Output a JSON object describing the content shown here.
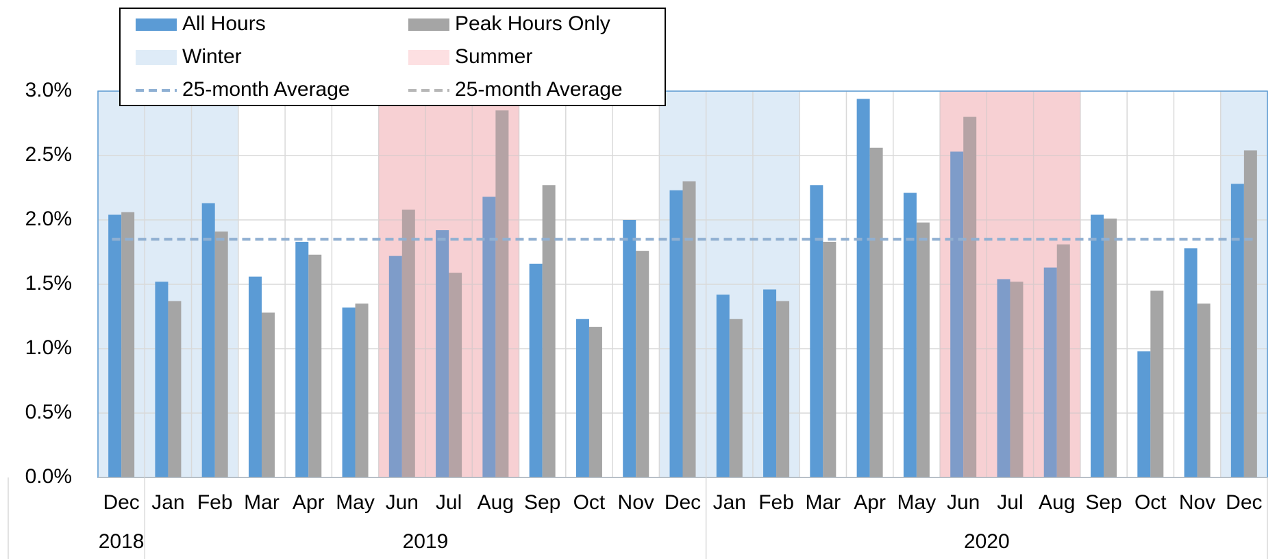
{
  "chart_data": {
    "type": "bar",
    "categories": [
      "Dec",
      "Jan",
      "Feb",
      "Mar",
      "Apr",
      "May",
      "Jun",
      "Jul",
      "Aug",
      "Sep",
      "Oct",
      "Nov",
      "Dec",
      "Jan",
      "Feb",
      "Mar",
      "Apr",
      "May",
      "Jun",
      "Jul",
      "Aug",
      "Sep",
      "Oct",
      "Nov",
      "Dec"
    ],
    "years": [
      {
        "label": "2018",
        "span": 1
      },
      {
        "label": "2019",
        "span": 12
      },
      {
        "label": "2020",
        "span": 12
      }
    ],
    "series": [
      {
        "name": "All Hours",
        "color": "#5b9bd5",
        "values": [
          2.04,
          1.52,
          2.13,
          1.56,
          1.83,
          1.32,
          1.72,
          1.92,
          2.18,
          1.66,
          1.23,
          2.0,
          2.23,
          1.42,
          1.46,
          2.27,
          2.94,
          2.21,
          2.53,
          1.54,
          1.63,
          2.04,
          0.98,
          1.78,
          2.28
        ]
      },
      {
        "name": "Peak Hours Only",
        "color": "#a5a5a5",
        "values": [
          2.06,
          1.37,
          1.91,
          1.28,
          1.73,
          1.35,
          2.08,
          1.59,
          2.85,
          2.27,
          1.17,
          1.76,
          2.3,
          1.23,
          1.37,
          1.83,
          2.56,
          1.98,
          2.8,
          1.52,
          1.81,
          2.01,
          1.45,
          1.35,
          2.54
        ]
      }
    ],
    "seasons": [
      {
        "name": "Winter",
        "color": "#deebf7",
        "categories": [
          0,
          1,
          2,
          12,
          13,
          14,
          24
        ]
      },
      {
        "name": "Summer",
        "color": "#fde0e2",
        "categories": [
          6,
          7,
          8,
          18,
          19,
          20
        ]
      }
    ],
    "averages": [
      {
        "name": "25-month Average",
        "color": "#8fb0d3",
        "value": 1.85
      },
      {
        "name": "25-month Average",
        "color": "#b7b7b7",
        "value": 1.85
      }
    ],
    "ylim": [
      0,
      3
    ],
    "yticks": [
      {
        "value": 0,
        "label": "0.0%"
      },
      {
        "value": 0.5,
        "label": "0.5%"
      },
      {
        "value": 1,
        "label": "1.0%"
      },
      {
        "value": 1.5,
        "label": "1.5%"
      },
      {
        "value": 2,
        "label": "2.0%"
      },
      {
        "value": 2.5,
        "label": "2.5%"
      },
      {
        "value": 3,
        "label": "3.0%"
      }
    ],
    "grid": true,
    "legend": "top-left"
  }
}
